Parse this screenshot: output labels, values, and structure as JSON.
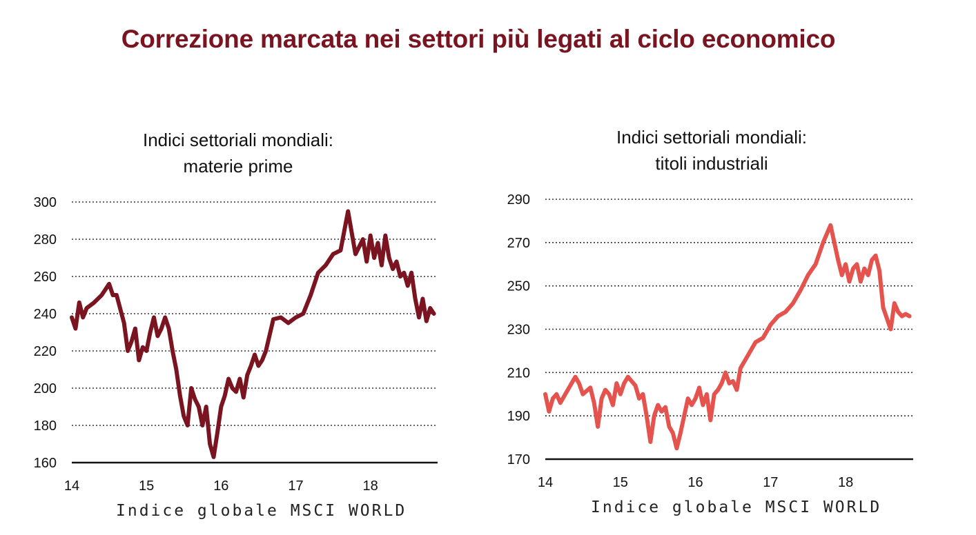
{
  "title": "Correzione marcata nei settori più legati al ciclo economico",
  "chart_data": [
    {
      "type": "line",
      "title": "Indici settoriali mondiali:",
      "subtitle": "materie prime",
      "xlabel": "Indice globale MSCI WORLD",
      "ylabel": "",
      "color": "#7a1420",
      "x_ticks": [
        "14",
        "15",
        "16",
        "17",
        "18"
      ],
      "y_ticks": [
        160,
        180,
        200,
        220,
        240,
        260,
        280,
        300
      ],
      "xlim": [
        14.0,
        18.9
      ],
      "ylim": [
        160,
        300
      ],
      "grid": true,
      "series": [
        {
          "name": "materie prime",
          "x": [
            14.0,
            14.05,
            14.1,
            14.15,
            14.2,
            14.3,
            14.4,
            14.5,
            14.55,
            14.6,
            14.7,
            14.75,
            14.8,
            14.85,
            14.9,
            14.95,
            15.0,
            15.05,
            15.1,
            15.15,
            15.2,
            15.25,
            15.3,
            15.35,
            15.4,
            15.45,
            15.5,
            15.55,
            15.6,
            15.65,
            15.7,
            15.75,
            15.8,
            15.85,
            15.9,
            15.95,
            16.0,
            16.05,
            16.1,
            16.15,
            16.2,
            16.25,
            16.3,
            16.35,
            16.4,
            16.45,
            16.5,
            16.55,
            16.6,
            16.7,
            16.8,
            16.9,
            17.0,
            17.1,
            17.2,
            17.3,
            17.4,
            17.5,
            17.6,
            17.7,
            17.8,
            17.9,
            17.95,
            18.0,
            18.05,
            18.1,
            18.15,
            18.2,
            18.25,
            18.3,
            18.35,
            18.4,
            18.45,
            18.5,
            18.55,
            18.6,
            18.65,
            18.7,
            18.75,
            18.8,
            18.85
          ],
          "values": [
            238,
            232,
            246,
            238,
            243,
            246,
            250,
            256,
            250,
            250,
            235,
            220,
            225,
            232,
            215,
            222,
            220,
            230,
            238,
            228,
            232,
            238,
            232,
            220,
            210,
            196,
            185,
            180,
            200,
            194,
            190,
            180,
            190,
            170,
            163,
            176,
            190,
            196,
            205,
            200,
            198,
            205,
            195,
            207,
            212,
            218,
            212,
            215,
            220,
            237,
            238,
            235,
            238,
            240,
            250,
            262,
            266,
            272,
            274,
            295,
            272,
            280,
            268,
            282,
            270,
            278,
            266,
            282,
            270,
            264,
            268,
            260,
            262,
            255,
            262,
            248,
            238,
            248,
            236,
            243,
            240
          ]
        }
      ]
    },
    {
      "type": "line",
      "title": "Indici settoriali mondiali:",
      "subtitle": "titoli industriali",
      "xlabel": "Indice globale MSCI WORLD",
      "ylabel": "",
      "color": "#e4534d",
      "x_ticks": [
        "14",
        "15",
        "16",
        "17",
        "18"
      ],
      "y_ticks": [
        170,
        190,
        210,
        230,
        250,
        270,
        290
      ],
      "xlim": [
        14.0,
        18.9
      ],
      "ylim": [
        170,
        290
      ],
      "grid": true,
      "series": [
        {
          "name": "titoli industriali",
          "x": [
            14.0,
            14.05,
            14.1,
            14.15,
            14.2,
            14.3,
            14.4,
            14.45,
            14.5,
            14.6,
            14.65,
            14.7,
            14.75,
            14.8,
            14.85,
            14.9,
            14.95,
            15.0,
            15.05,
            15.1,
            15.15,
            15.2,
            15.25,
            15.3,
            15.35,
            15.4,
            15.45,
            15.5,
            15.55,
            15.6,
            15.65,
            15.7,
            15.75,
            15.8,
            15.85,
            15.9,
            15.95,
            16.0,
            16.05,
            16.1,
            16.15,
            16.2,
            16.25,
            16.3,
            16.35,
            16.4,
            16.45,
            16.5,
            16.55,
            16.6,
            16.7,
            16.8,
            16.9,
            17.0,
            17.1,
            17.2,
            17.3,
            17.4,
            17.5,
            17.6,
            17.7,
            17.8,
            17.9,
            17.95,
            18.0,
            18.05,
            18.1,
            18.15,
            18.2,
            18.25,
            18.3,
            18.35,
            18.4,
            18.45,
            18.5,
            18.55,
            18.6,
            18.65,
            18.7,
            18.75,
            18.8,
            18.85
          ],
          "values": [
            200,
            192,
            198,
            200,
            196,
            202,
            208,
            205,
            200,
            203,
            196,
            185,
            198,
            202,
            200,
            195,
            205,
            200,
            205,
            208,
            206,
            204,
            198,
            200,
            190,
            178,
            190,
            195,
            192,
            194,
            185,
            182,
            175,
            182,
            190,
            198,
            195,
            198,
            203,
            195,
            200,
            188,
            200,
            202,
            205,
            210,
            205,
            206,
            202,
            212,
            218,
            224,
            226,
            232,
            236,
            238,
            242,
            248,
            255,
            260,
            270,
            278,
            262,
            255,
            260,
            252,
            258,
            260,
            252,
            258,
            255,
            262,
            264,
            257,
            240,
            235,
            230,
            242,
            238,
            236,
            237,
            236
          ]
        }
      ]
    }
  ]
}
